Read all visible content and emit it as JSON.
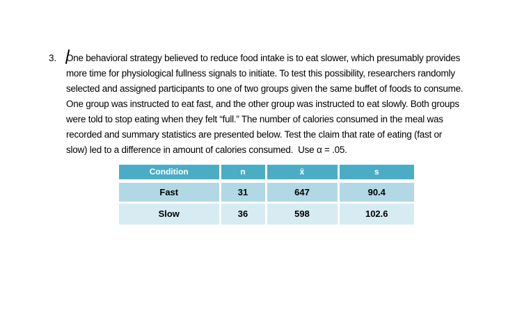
{
  "problem": {
    "number": "3.",
    "lines": [
      "One behavioral strategy believed to reduce food intake is to eat slower, which presumably provides",
      "more time for physiological fullness signals to initiate. To test this possibility, researchers randomly",
      "selected and assigned participants to one of two groups given the same buffet of foods to consume.",
      "One group was instructed to eat fast, and the other group was instructed to eat slowly. Both groups",
      "were told to stop eating when they felt “full.” The number of calories consumed in the meal was",
      "recorded and summary statistics are presented below. Test the claim that rate of eating (fast or",
      "slow) led to a difference in amount of calories consumed.  Use α = .05."
    ]
  },
  "table": {
    "columns": [
      "Condition",
      "n",
      "x̄",
      "s"
    ],
    "rows": [
      {
        "condition": "Fast",
        "n": "31",
        "xbar": "647",
        "s": "90.4"
      },
      {
        "condition": "Slow",
        "n": "36",
        "xbar": "598",
        "s": "102.6"
      }
    ],
    "colors": {
      "header_bg": "#4BACC6",
      "header_text": "#FFFFFF",
      "row1_bg": "#B1D8E4",
      "row2_bg": "#D7EBF2",
      "border": "#FFFFFF",
      "data_text": "#000000"
    }
  },
  "cursor": {
    "present": "true"
  }
}
